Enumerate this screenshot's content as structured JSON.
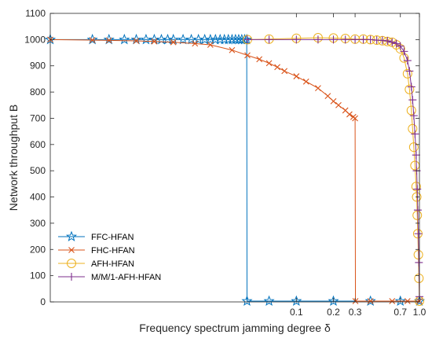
{
  "chart_data": {
    "type": "line",
    "xlabel": "Frequency spectrum jamming degree δ",
    "ylabel": "Network throughput B",
    "x_scale": "log",
    "xlim": [
      0.001,
      1.0
    ],
    "ylim": [
      0,
      1100
    ],
    "x_ticks": [
      0.1,
      0.2,
      0.3,
      0.7,
      1.0
    ],
    "x_tick_labels": [
      "0.1",
      "0.2",
      "0.3",
      "0.7",
      "1.0"
    ],
    "y_ticks": [
      0,
      100,
      200,
      300,
      400,
      500,
      600,
      700,
      800,
      900,
      1000,
      1100
    ],
    "grid": false,
    "legend_position": "lower-left",
    "series": [
      {
        "name": "FFC-HFAN",
        "color": "#0072BD",
        "marker": "star",
        "x": [
          0.001,
          0.0022,
          0.003,
          0.004,
          0.005,
          0.006,
          0.007,
          0.008,
          0.009,
          0.01,
          0.012,
          0.014,
          0.016,
          0.018,
          0.02,
          0.022,
          0.024,
          0.026,
          0.028,
          0.03,
          0.032,
          0.034,
          0.036,
          0.038,
          0.0395,
          0.0397,
          0.06,
          0.1,
          0.2,
          0.4,
          0.7,
          1.0
        ],
        "y": [
          1000,
          1000,
          1000,
          1000,
          1000,
          1000,
          1000,
          1000,
          1000,
          1000,
          1000,
          1000,
          1000,
          1000,
          1000,
          1000,
          1000,
          1000,
          1000,
          1000,
          1000,
          1000,
          1000,
          1000,
          1000,
          3,
          3,
          3,
          3,
          3,
          3,
          3
        ]
      },
      {
        "name": "FHC-HFAN",
        "color": "#D95319",
        "marker": "x",
        "x": [
          0.001,
          0.0022,
          0.003,
          0.005,
          0.007,
          0.01,
          0.015,
          0.02,
          0.03,
          0.04,
          0.05,
          0.06,
          0.07,
          0.08,
          0.1,
          0.12,
          0.15,
          0.18,
          0.2,
          0.22,
          0.25,
          0.27,
          0.29,
          0.3,
          0.302,
          0.4,
          0.6,
          0.8,
          1.0
        ],
        "y": [
          1000,
          998,
          997,
          995,
          993,
          990,
          985,
          980,
          960,
          940,
          925,
          910,
          895,
          880,
          860,
          840,
          815,
          785,
          765,
          750,
          730,
          715,
          705,
          700,
          3,
          3,
          3,
          3,
          3
        ]
      },
      {
        "name": "AFH-HFAN",
        "color": "#EDB120",
        "marker": "circle",
        "x": [
          0.04,
          0.06,
          0.1,
          0.15,
          0.2,
          0.25,
          0.3,
          0.35,
          0.4,
          0.45,
          0.5,
          0.55,
          0.6,
          0.65,
          0.7,
          0.75,
          0.8,
          0.83,
          0.86,
          0.88,
          0.9,
          0.92,
          0.94,
          0.95,
          0.96,
          0.97,
          0.98,
          0.99,
          1.0
        ],
        "y": [
          1000,
          1002,
          1005,
          1007,
          1006,
          1004,
          1002,
          1002,
          1000,
          998,
          996,
          993,
          990,
          980,
          965,
          930,
          870,
          810,
          730,
          660,
          590,
          520,
          440,
          400,
          330,
          260,
          180,
          90,
          3
        ]
      },
      {
        "name": "M/M/1-AFH-HFAN",
        "color": "#7E2F8E",
        "marker": "plus",
        "x": [
          0.04,
          0.06,
          0.1,
          0.15,
          0.2,
          0.25,
          0.3,
          0.35,
          0.4,
          0.45,
          0.5,
          0.55,
          0.6,
          0.65,
          0.7,
          0.75,
          0.8,
          0.83,
          0.86,
          0.88,
          0.9,
          0.92,
          0.94,
          0.95,
          0.96,
          0.97,
          0.98,
          0.99,
          1.0
        ],
        "y": [
          1000,
          1000,
          1000,
          1000,
          1000,
          1000,
          1000,
          1000,
          1000,
          998,
          997,
          995,
          990,
          985,
          975,
          955,
          920,
          880,
          820,
          770,
          710,
          640,
          560,
          500,
          430,
          350,
          260,
          150,
          20
        ]
      }
    ]
  }
}
